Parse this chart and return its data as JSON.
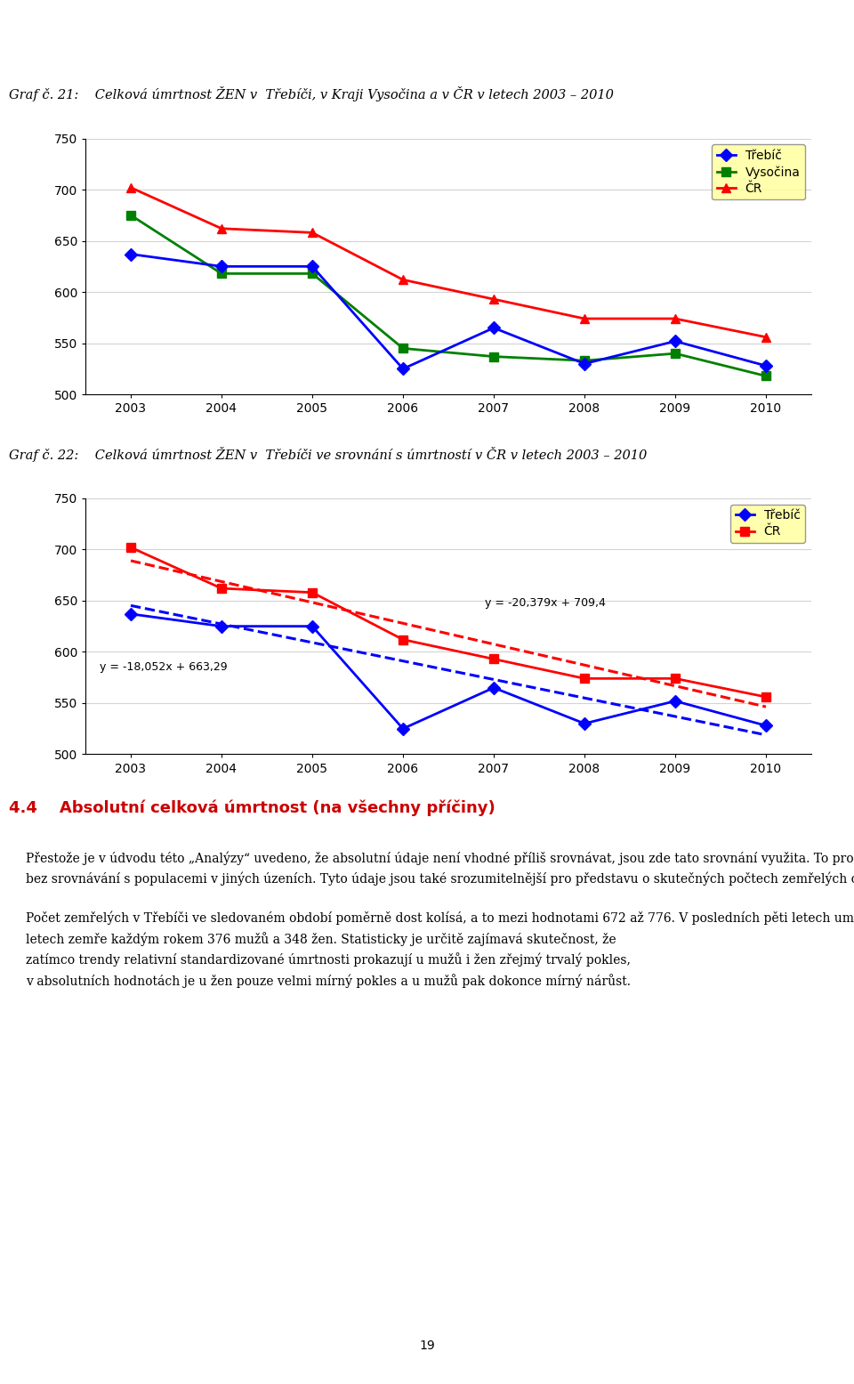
{
  "title1": "Graf č. 21:    Celková úmrtnost ŽEN v  Třebíči, v Kraji Vysočina a v ČR v letech 2003 – 2010",
  "title2": "Graf č. 22:    Celková úmrtnost ŽEN v  Třebíči ve srovnání s úmrtností v ČR v letech 2003 – 2010",
  "years": [
    2003,
    2004,
    2005,
    2006,
    2007,
    2008,
    2009,
    2010
  ],
  "trebic1": [
    637,
    625,
    625,
    525,
    565,
    530,
    552,
    528
  ],
  "vysocina": [
    675,
    618,
    618,
    545,
    537,
    533,
    540,
    518
  ],
  "cr1": [
    702,
    662,
    658,
    612,
    593,
    574,
    574,
    556
  ],
  "trebic2": [
    637,
    625,
    625,
    525,
    565,
    530,
    552,
    528
  ],
  "cr2": [
    702,
    662,
    658,
    612,
    593,
    574,
    574,
    556
  ],
  "trendline_trebic_slope": -18.052,
  "trendline_trebic_intercept": 663.29,
  "trendline_cr_slope": -20.379,
  "trendline_cr_intercept": 709.4,
  "trendline_trebic_label": "y = -18,052x + 663,29",
  "trendline_cr_label": "y = -20,379x + 709,4",
  "ylim": [
    500,
    750
  ],
  "yticks": [
    500,
    550,
    600,
    650,
    700,
    750
  ],
  "color_trebic": "#0000FF",
  "color_vysocina": "#008000",
  "color_cr": "#FF0000",
  "legend1_labels": [
    "Třebíč",
    "Vysočina",
    "ČR"
  ],
  "legend2_labels": [
    "Třebíč",
    "ČR"
  ],
  "legend_bg": "#FFFF99",
  "section_title": "4.4    Absolutní celková úmrtnost (na všechny příčiny)",
  "body_lines": [
    "Přestože je v údvodu této „Analýzy“ uvedeno, že absolutní údaje není vhodné příliš srovnávat, jsou zde tato srovnání využita. To proto, že jsou použita pouze ke srovnání úmrtnosti v Třebíči",
    "bez srovnávání s populacemi v jiných úzeních. Tyto údaje jsou také srozumitelnější pro představu o skutečných počtech zemřelých osob.",
    "",
    "Počet zemřelých v Třebíči ve sledovaném období poměrně dost kolísá, a to mezi hodnotami 672 až 776. V posledních pěti letech umírá každým rokem více mužů než žen. Průměrně v těchto",
    "letech zemře každým rokem 376 mužů a 348 žen. Statisticky je určitě zajímavá skutečnost, že",
    "zatímco trendy relativní standardizované úmrtnosti prokazují u mužů i žen zřejmý trvalý pokles,",
    "v absolutních hodnotách je u žen pouze velmi mírný pokles a u mužů pak dokonce mírný nárůst."
  ],
  "page_number": "19"
}
